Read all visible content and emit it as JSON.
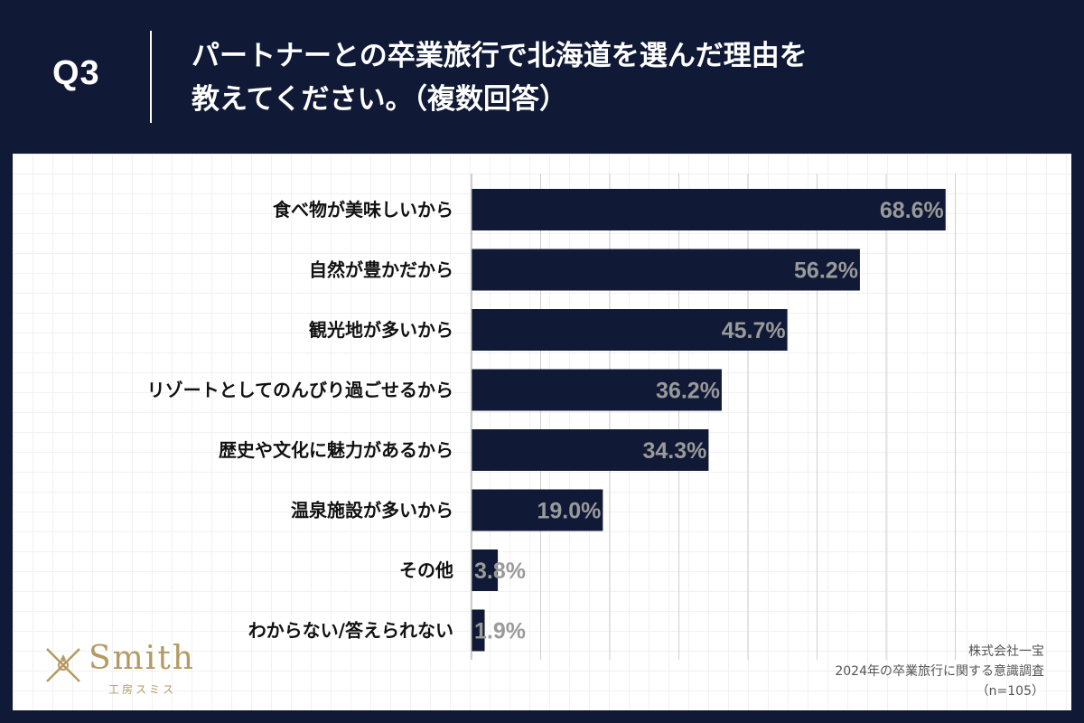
{
  "header": {
    "question_label": "Q3",
    "title_line1": "パートナーとの卒業旅行で北海道を選んだ理由を",
    "title_line2": "教えてください。（複数回答）"
  },
  "logo": {
    "name": "Smith",
    "sub": "工房スミス"
  },
  "source": {
    "company": "株式会社一宝",
    "survey": "2024年の卒業旅行に関する意識調査",
    "sample": "（n=105）"
  },
  "colors": {
    "bar": "#101a36",
    "value_label": "#9a9a9a",
    "logo": "#b49a62"
  },
  "chart_data": {
    "type": "bar",
    "orientation": "horizontal",
    "categories": [
      "食べ物が美味しいから",
      "自然が豊かだから",
      "観光地が多いから",
      "リゾートとしてのんびり過ごせるから",
      "歴史や文化に魅力があるから",
      "温泉施設が多いから",
      "その他",
      "わからない/答えられない"
    ],
    "values": [
      68.6,
      56.2,
      45.7,
      36.2,
      34.3,
      19.0,
      3.8,
      1.9
    ],
    "value_labels": [
      "68.6%",
      "56.2%",
      "45.7%",
      "36.2%",
      "34.3%",
      "19.0%",
      "3.8%",
      "1.9%"
    ],
    "unit": "%",
    "xlim": [
      0,
      70
    ],
    "grid": true
  }
}
